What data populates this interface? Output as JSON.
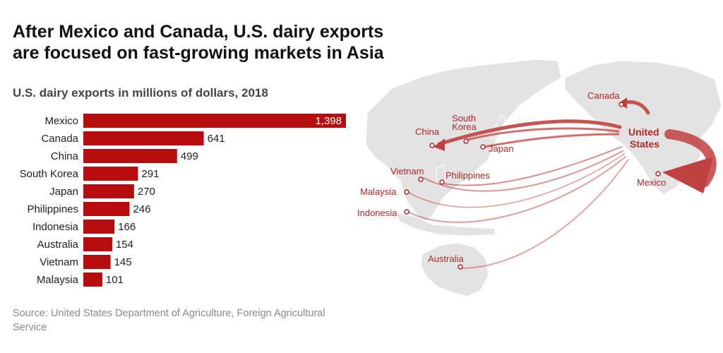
{
  "headline": "After Mexico and Canada, U.S. dairy exports are focused on fast-growing markets in Asia",
  "source": "Source: United States Department of Agriculture, Foreign Agricultural Service",
  "colors": {
    "bar": "#b50d0d",
    "map_land": "#e3e3e3",
    "map_label": "#b3262a",
    "arrow": "#c0413f"
  },
  "chart_data": {
    "type": "bar",
    "orientation": "horizontal",
    "title": "U.S. dairy exports in millions of dollars, 2018",
    "categories": [
      "Mexico",
      "Canada",
      "China",
      "South Korea",
      "Japan",
      "Philippines",
      "Indonesia",
      "Australia",
      "Vietnam",
      "Malaysia"
    ],
    "values": [
      1398,
      641,
      499,
      291,
      270,
      246,
      166,
      154,
      145,
      101
    ],
    "value_labels": [
      "1,398",
      "641",
      "499",
      "291",
      "270",
      "246",
      "166",
      "154",
      "145",
      "101"
    ],
    "xlim": [
      0,
      1398
    ],
    "grid": false
  },
  "map": {
    "origin_label": "United States",
    "destinations": [
      {
        "label": "Canada"
      },
      {
        "label": "Mexico"
      },
      {
        "label": "China"
      },
      {
        "label": "South Korea"
      },
      {
        "label": "Japan"
      },
      {
        "label": "Vietnam"
      },
      {
        "label": "Philippines"
      },
      {
        "label": "Malaysia"
      },
      {
        "label": "Indonesia"
      },
      {
        "label": "Australia"
      }
    ]
  }
}
